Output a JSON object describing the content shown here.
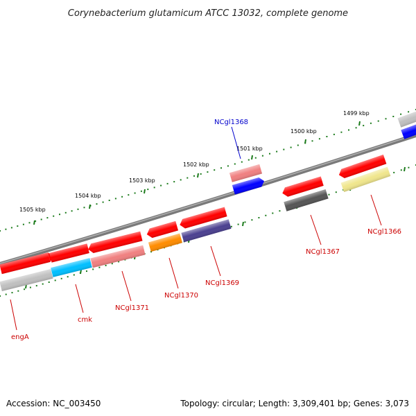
{
  "title": "Corynebacterium glutamicum ATCC 13032, complete genome",
  "footer": {
    "accession": "Accession: NC_003450",
    "summary": "Topology: circular; Length: 3,309,401 bp; Genes: 3,073"
  },
  "scale_labels": [
    "1505 kbp",
    "1504 kbp",
    "1503 kbp",
    "1502 kbp",
    "1501 kbp",
    "1500 kbp",
    "1499 kbp"
  ],
  "genes": [
    {
      "id": "engA",
      "label": "engA",
      "color": "#cc0000"
    },
    {
      "id": "cmk",
      "label": "cmk",
      "color": "#cc0000"
    },
    {
      "id": "ncgl1371",
      "label": "NCgl1371",
      "color": "#cc0000"
    },
    {
      "id": "ncgl1370",
      "label": "NCgl1370",
      "color": "#cc0000"
    },
    {
      "id": "ncgl1369",
      "label": "NCgl1369",
      "color": "#cc0000"
    },
    {
      "id": "ncgl1368",
      "label": "NCgl1368",
      "color": "#0000cc"
    },
    {
      "id": "ncgl1367",
      "label": "NCgl1367",
      "color": "#cc0000"
    },
    {
      "id": "ncgl1366",
      "label": "NCgl1366",
      "color": "#cc0000"
    }
  ],
  "colors": {
    "forward_feature": "#ff0000",
    "light_red": "#f08080",
    "blue": "#0000ff",
    "cyan": "#00bfff",
    "orange": "#ff8c00",
    "slate_blue": "#4b4090",
    "dark_gray": "#555555",
    "light_gray": "#c0c0c0",
    "khaki": "#f0e68c",
    "backbone": "#808080",
    "tick": "#006400"
  }
}
